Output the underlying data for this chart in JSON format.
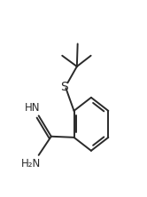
{
  "bg_color": "#ffffff",
  "line_color": "#2a2a2a",
  "line_width": 1.4,
  "font_size": 8.5,
  "label_S": "S",
  "label_HN": "HN",
  "label_H2N": "H₂N",
  "figsize": [
    1.66,
    2.22
  ],
  "dpi": 100
}
